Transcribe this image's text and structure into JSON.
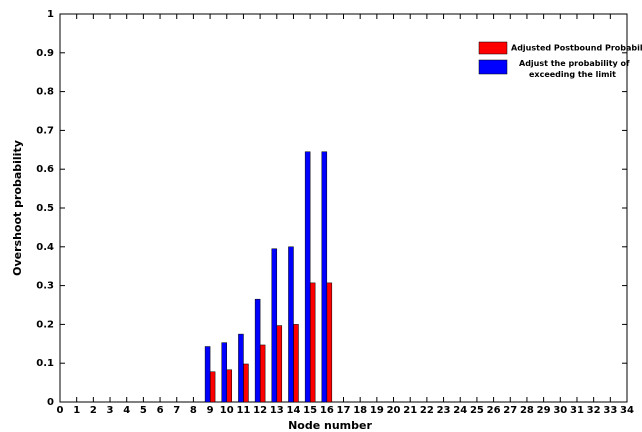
{
  "chart_data": {
    "type": "bar",
    "xlabel": "Node number",
    "ylabel": "Overshoot probability",
    "x": [
      0,
      1,
      2,
      3,
      4,
      5,
      6,
      7,
      8,
      9,
      10,
      11,
      12,
      13,
      14,
      15,
      16,
      17,
      18,
      19,
      20,
      21,
      22,
      23,
      24,
      25,
      26,
      27,
      28,
      29,
      30,
      31,
      32,
      33,
      34
    ],
    "xlim": [
      0,
      34
    ],
    "xticks": [
      0,
      1,
      2,
      3,
      4,
      5,
      6,
      7,
      8,
      9,
      10,
      11,
      12,
      13,
      14,
      15,
      16,
      17,
      18,
      19,
      20,
      21,
      22,
      23,
      24,
      25,
      26,
      27,
      28,
      29,
      30,
      31,
      32,
      33,
      34
    ],
    "ylim": [
      0,
      1
    ],
    "yticks": [
      0,
      0.1,
      0.2,
      0.3,
      0.4,
      0.5,
      0.6,
      0.7,
      0.8,
      0.9,
      1
    ],
    "grid": false,
    "legend": "upper right",
    "series": [
      {
        "name": "Adjusted Postbound Probability",
        "color": "#ff0000",
        "values": [
          0,
          0,
          0,
          0,
          0,
          0,
          0,
          0,
          0,
          0.078,
          0.083,
          0.098,
          0.147,
          0.197,
          0.2,
          0.307,
          0.307,
          0,
          0,
          0,
          0,
          0,
          0,
          0,
          0,
          0,
          0,
          0,
          0,
          0,
          0,
          0,
          0,
          0,
          0
        ]
      },
      {
        "name": "Adjust the probability of exceeding the limit",
        "color": "#0000ff",
        "values": [
          0,
          0,
          0,
          0,
          0,
          0,
          0,
          0,
          0,
          0.143,
          0.153,
          0.175,
          0.265,
          0.395,
          0.4,
          0.645,
          0.645,
          0,
          0,
          0,
          0,
          0,
          0,
          0,
          0,
          0,
          0,
          0,
          0,
          0,
          0,
          0,
          0,
          0,
          0
        ]
      }
    ]
  }
}
